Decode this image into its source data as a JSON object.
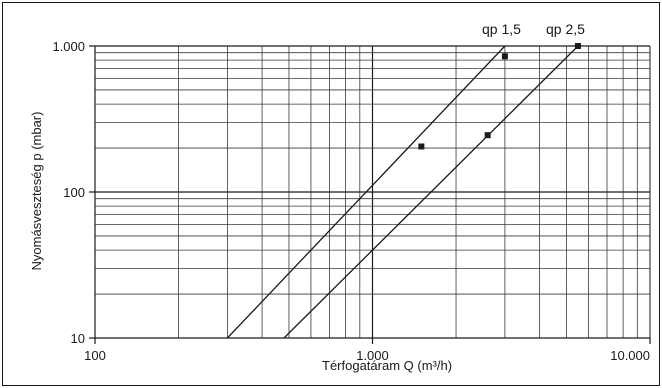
{
  "chart_data": {
    "type": "line",
    "title": "",
    "xlabel": "Térfogatáram Q (m³/h)",
    "ylabel": "Nyomásveszteség p (mbar)",
    "x_scale": "log",
    "y_scale": "log",
    "xlim": [
      100,
      10000
    ],
    "ylim": [
      10,
      1000
    ],
    "grid": true,
    "x_ticks": [
      {
        "value": 100,
        "label": "100"
      },
      {
        "value": 1000,
        "label": "1.000"
      },
      {
        "value": 10000,
        "label": "10.000"
      }
    ],
    "y_ticks": [
      {
        "value": 10,
        "label": "10"
      },
      {
        "value": 100,
        "label": "100"
      },
      {
        "value": 1000,
        "label": "1.000"
      }
    ],
    "series": [
      {
        "name": "qp 1,5",
        "line": [
          [
            300,
            10
          ],
          [
            3000,
            1000
          ]
        ],
        "markers": [
          [
            1500,
            205
          ],
          [
            3000,
            850
          ]
        ]
      },
      {
        "name": "qp 2,5",
        "line": [
          [
            480,
            10
          ],
          [
            5500,
            1000
          ]
        ],
        "markers": [
          [
            2600,
            245
          ],
          [
            5500,
            1000
          ]
        ]
      }
    ]
  }
}
